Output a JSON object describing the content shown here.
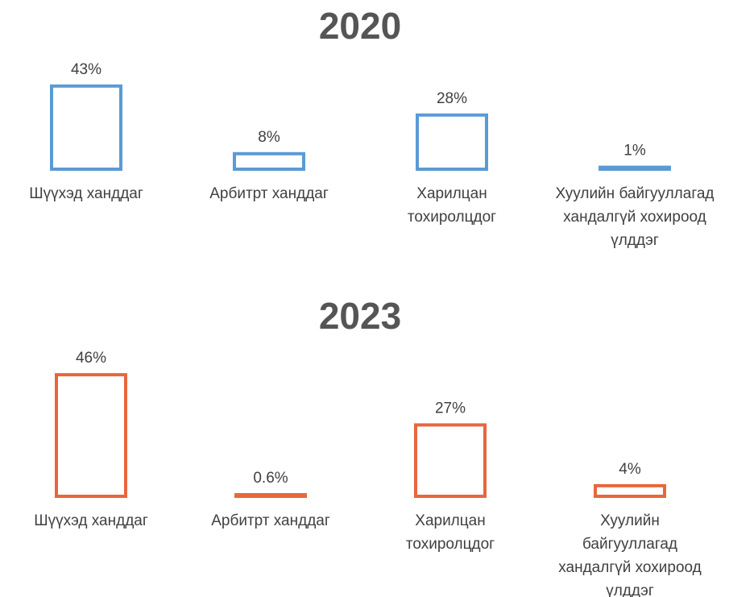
{
  "chart_data": [
    {
      "type": "bar",
      "title": "2020",
      "categories": [
        "Шүүхэд ханддаг",
        "Арбитрт ханддаг",
        "Харилцан тохиролцдог",
        "Хуулийн байгууллагад хандалгүй хохироод үлддэг"
      ],
      "values": [
        43,
        8,
        28,
        1
      ],
      "value_labels": [
        "43%",
        "8%",
        "28%",
        "1%"
      ],
      "color": "#5b9bd5"
    },
    {
      "type": "bar",
      "title": "2023",
      "categories": [
        "Шүүхэд ханддаг",
        "Арбитрт ханддаг",
        "Харилцан тохиролцдог",
        "Хуулийн байгууллагад хандалгүй хохироод үлддэг"
      ],
      "values": [
        46,
        0.6,
        27,
        4
      ],
      "value_labels": [
        "46%",
        "0.6%",
        "27%",
        "4%"
      ],
      "color": "#e8663d"
    }
  ]
}
